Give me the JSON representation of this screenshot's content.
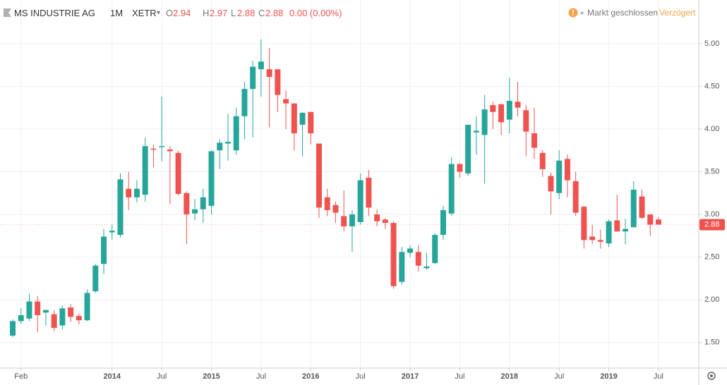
{
  "header": {
    "symbol": "MS INDUSTRIE AG",
    "interval": "1M",
    "exchange": "XETR",
    "ohlc": [
      {
        "label": "O",
        "value": 2.94
      },
      {
        "label": "H",
        "value": 2.97
      },
      {
        "label": "L",
        "value": 2.88
      },
      {
        "label": "C",
        "value": 2.88
      }
    ],
    "change": "0.00 (0.00%)",
    "status": "Markt geschlossen",
    "delay": "Verzögert"
  },
  "chart_data": {
    "type": "candlestick",
    "categories": [
      null,
      "Feb",
      null,
      null,
      null,
      null,
      null,
      null,
      null,
      null,
      null,
      null,
      "2014",
      null,
      null,
      null,
      null,
      null,
      "Jul",
      null,
      null,
      null,
      null,
      null,
      "2015",
      null,
      null,
      null,
      null,
      null,
      "Jul",
      null,
      null,
      null,
      null,
      null,
      "2016",
      null,
      null,
      null,
      null,
      null,
      "Jul",
      null,
      null,
      null,
      null,
      null,
      "2017",
      null,
      null,
      null,
      null,
      null,
      "Jul",
      null,
      null,
      null,
      null,
      null,
      "2018",
      null,
      null,
      null,
      null,
      null,
      "Jul",
      null,
      null,
      null,
      null,
      null,
      "2019",
      null,
      null,
      null,
      null,
      null,
      "Jul"
    ],
    "open": [
      1.58,
      1.75,
      1.78,
      1.98,
      1.85,
      1.83,
      1.7,
      1.91,
      1.81,
      1.76,
      2.1,
      2.42,
      2.79,
      2.76,
      3.3,
      3.2,
      3.23,
      3.77,
      3.79,
      3.76,
      3.72,
      3.25,
      3.01,
      3.06,
      3.1,
      3.75,
      3.83,
      3.75,
      4.15,
      4.47,
      4.7,
      4.7,
      4.7,
      4.35,
      4.3,
      4.05,
      4.2,
      3.83,
      3.2,
      3.11,
      2.98,
      2.86,
      2.91,
      3.43,
      3.0,
      2.94,
      2.9,
      2.21,
      2.55,
      2.56,
      2.37,
      2.43,
      2.76,
      3.01,
      3.59,
      3.48,
      3.96,
      3.93,
      4.28,
      4.29,
      4.11,
      4.32,
      4.22,
      3.95,
      3.72,
      3.45,
      3.25,
      3.65,
      3.39,
      3.09,
      2.74,
      2.7,
      2.66,
      2.93,
      2.8,
      2.85,
      3.21,
      3.0,
      2.94
    ],
    "high": [
      1.77,
      1.9,
      2.07,
      2.04,
      1.88,
      1.88,
      1.93,
      1.95,
      1.84,
      2.12,
      2.42,
      2.83,
      2.88,
      3.48,
      3.5,
      3.4,
      3.9,
      3.82,
      4.38,
      3.8,
      3.75,
      3.27,
      3.18,
      3.3,
      3.75,
      3.88,
      4.18,
      4.25,
      4.55,
      4.8,
      5.05,
      4.95,
      4.7,
      4.45,
      4.3,
      4.2,
      4.2,
      3.83,
      3.3,
      3.15,
      3.28,
      3.05,
      3.48,
      3.52,
      3.06,
      2.96,
      2.92,
      2.62,
      2.64,
      2.64,
      2.55,
      2.78,
      3.1,
      3.67,
      3.6,
      4.05,
      4.15,
      4.4,
      4.32,
      4.3,
      4.6,
      4.55,
      4.28,
      4.25,
      3.75,
      3.49,
      3.75,
      3.7,
      3.5,
      3.1,
      2.88,
      2.82,
      2.94,
      3.23,
      2.95,
      3.39,
      3.29,
      3.0,
      2.97
    ],
    "low": [
      1.56,
      1.72,
      1.75,
      1.62,
      1.7,
      1.63,
      1.65,
      1.74,
      1.71,
      1.75,
      2.08,
      2.3,
      2.7,
      2.73,
      3.05,
      3.14,
      3.15,
      3.55,
      3.62,
      3.12,
      3.22,
      2.65,
      2.93,
      2.9,
      3.0,
      3.53,
      3.63,
      3.7,
      3.88,
      3.9,
      4.38,
      4.02,
      4.2,
      4.0,
      3.75,
      3.68,
      3.82,
      2.96,
      2.98,
      2.9,
      2.8,
      2.56,
      2.88,
      2.98,
      2.86,
      2.83,
      2.13,
      2.18,
      2.5,
      2.33,
      2.35,
      2.42,
      2.7,
      2.98,
      3.43,
      3.45,
      3.7,
      3.36,
      4.0,
      3.93,
      3.95,
      4.15,
      3.68,
      3.65,
      3.44,
      3.0,
      3.18,
      3.2,
      2.98,
      2.6,
      2.65,
      2.6,
      2.62,
      2.8,
      2.65,
      2.85,
      2.95,
      2.75,
      2.88
    ],
    "close": [
      1.75,
      1.82,
      1.98,
      1.82,
      1.88,
      1.67,
      1.9,
      1.8,
      1.76,
      2.08,
      2.4,
      2.74,
      2.81,
      3.41,
      3.2,
      3.3,
      3.8,
      3.76,
      3.8,
      3.74,
      3.24,
      3.0,
      3.06,
      3.2,
      3.74,
      3.84,
      3.85,
      4.15,
      4.47,
      4.73,
      4.79,
      4.61,
      4.4,
      4.3,
      3.95,
      4.19,
      3.95,
      3.08,
      3.05,
      3.02,
      2.86,
      3.0,
      3.4,
      3.08,
      2.92,
      2.9,
      2.16,
      2.56,
      2.6,
      2.4,
      2.39,
      2.76,
      3.05,
      3.59,
      3.5,
      4.05,
      3.98,
      4.23,
      4.2,
      4.08,
      4.33,
      4.25,
      3.97,
      3.78,
      3.53,
      3.27,
      3.63,
      3.4,
      3.02,
      2.7,
      2.7,
      2.68,
      2.92,
      2.8,
      2.83,
      3.29,
      2.96,
      2.88,
      2.88
    ],
    "up_color": "#26a69a",
    "down_color": "#ef5350",
    "ylim": [
      1.2,
      5.47
    ],
    "yticks": [
      {
        "value": 1.5,
        "label": "1.50"
      },
      {
        "value": 2,
        "label": "2.00"
      },
      {
        "value": 2.5,
        "label": "2.50"
      },
      {
        "value": 3,
        "label": "3.00"
      },
      {
        "value": 3.5,
        "label": "3.50"
      },
      {
        "value": 4,
        "label": "4.00"
      },
      {
        "value": 4.5,
        "label": "4.50"
      },
      {
        "value": 5,
        "label": "5.00"
      }
    ],
    "grid": true,
    "last_price": 2.88
  }
}
